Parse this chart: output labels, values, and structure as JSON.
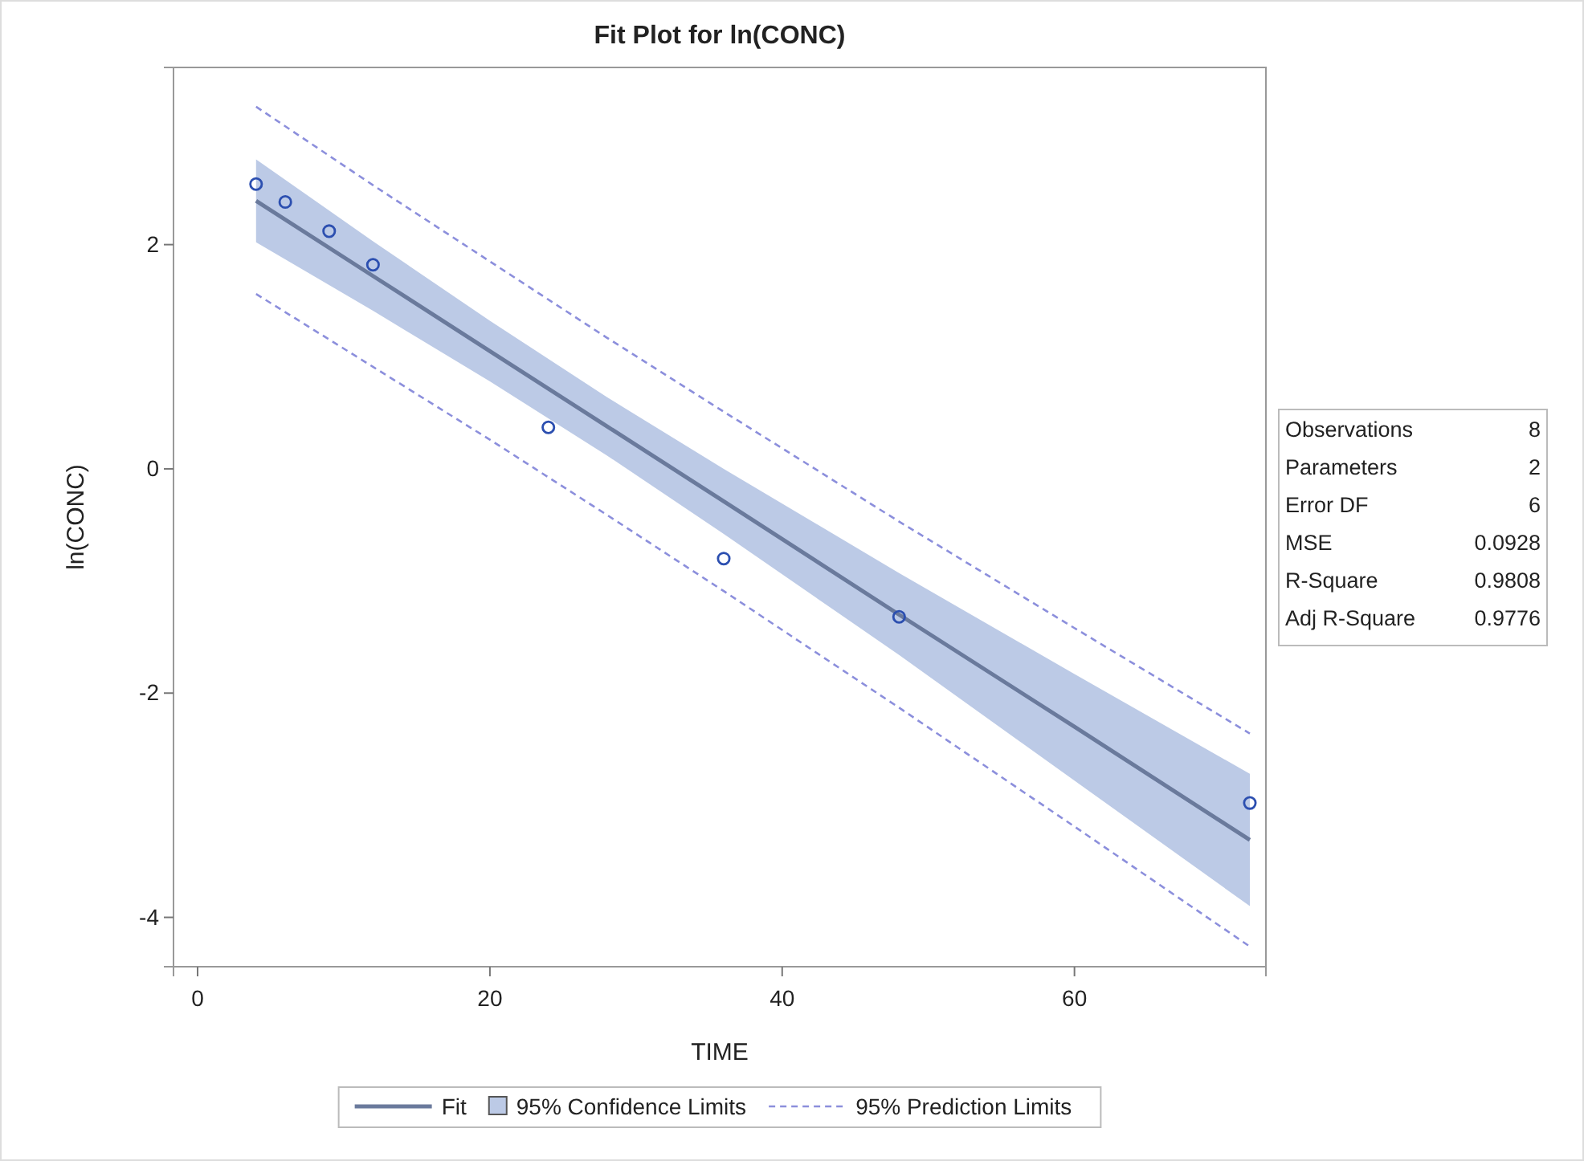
{
  "chart_data": {
    "type": "line",
    "title": "Fit Plot for ln(CONC)",
    "xlabel": "TIME",
    "ylabel": "ln(CONC)",
    "xlim": [
      -1.65,
      73.1
    ],
    "ylim": [
      -4.44,
      3.58
    ],
    "xticks": [
      0,
      20,
      40,
      60
    ],
    "yticks": [
      -4,
      -2,
      0,
      2
    ],
    "grid": false,
    "legend": "bottom",
    "series": [
      {
        "name": "Fit",
        "color": "#6a7a9c",
        "line_style": "solid",
        "x": [
          4,
          12,
          20,
          28,
          36,
          48,
          60,
          72
        ],
        "values": [
          2.39,
          1.72,
          1.05,
          0.38,
          -0.29,
          -1.3,
          -2.3,
          -3.31
        ],
        "lower": [
          2.02,
          1.41,
          0.78,
          0.12,
          -0.58,
          -1.66,
          -2.78,
          -3.9
        ],
        "upper": [
          2.76,
          2.03,
          1.32,
          0.64,
          0.0,
          -0.93,
          -1.83,
          -2.72
        ]
      },
      {
        "name": "95% Prediction Limits",
        "type": "line",
        "line_style": "dashed",
        "color": "#8c8fdc",
        "x": [
          4,
          12,
          20,
          28,
          36,
          48,
          60,
          72
        ],
        "values": [
          3.23,
          2.53,
          1.85,
          1.17,
          0.51,
          -0.47,
          -1.42,
          -2.36
        ]
      },
      {
        "type": "line",
        "line_style": "dashed",
        "color": "#8c8fdc",
        "x": [
          4,
          12,
          20,
          28,
          36,
          48,
          60,
          72
        ],
        "values": [
          1.56,
          0.91,
          0.26,
          -0.41,
          -1.09,
          -2.13,
          -3.19,
          -4.26
        ]
      },
      {
        "type": "scatter",
        "marker": "circle",
        "color": "#2c4fb0",
        "x": [
          4,
          6,
          9,
          12,
          24,
          36,
          48,
          72
        ],
        "values": [
          2.54,
          2.38,
          2.12,
          1.82,
          0.37,
          -0.8,
          -1.32,
          -2.98
        ]
      }
    ],
    "annotations": [
      "95% Confidence Limits",
      "Observations 8",
      "Parameters 2",
      "Error DF 6",
      "MSE 0.0928",
      "R-Square 0.9808",
      "Adj R-Square 0.9776"
    ]
  }
}
